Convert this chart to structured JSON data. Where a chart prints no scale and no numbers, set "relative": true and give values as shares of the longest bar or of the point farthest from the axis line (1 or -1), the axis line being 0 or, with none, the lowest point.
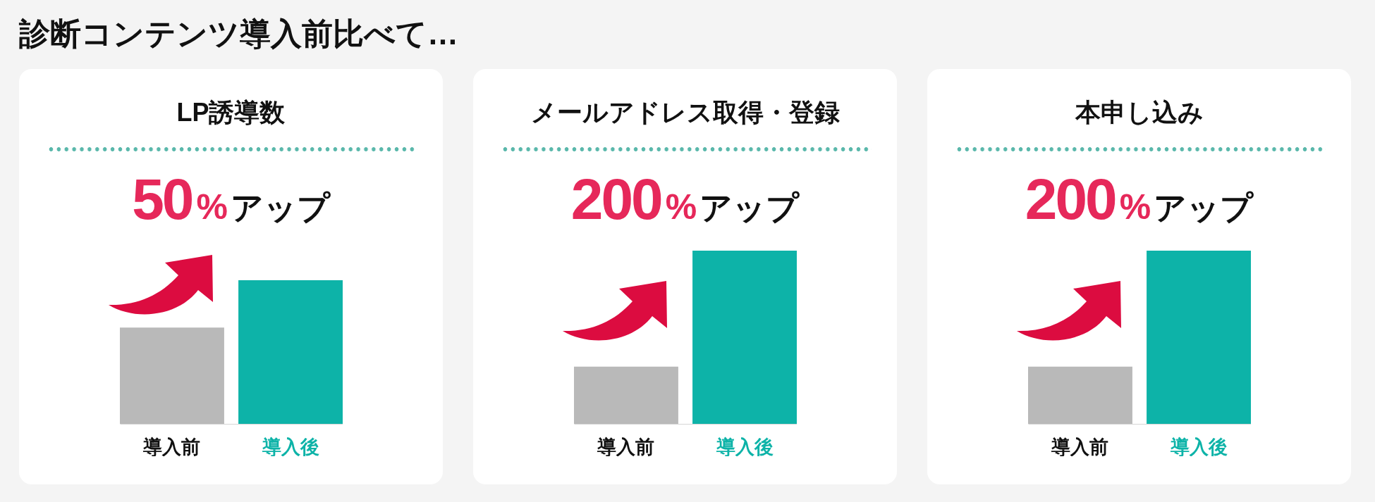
{
  "chart_data": [
    {
      "type": "other",
      "title": "診断コンテンツ導入前比べて…"
    },
    {
      "type": "bar",
      "title": "LP誘導数",
      "subtitle": "50%アップ",
      "categories": [
        "導入前",
        "導入後"
      ],
      "values": [
        0.67,
        1
      ],
      "colors": [
        "#b9b9b9",
        "#0db3a8"
      ],
      "relative": true
    },
    {
      "type": "bar",
      "title": "メールアドレス取得・登録",
      "subtitle": "200%アップ",
      "categories": [
        "導入前",
        "導入後"
      ],
      "values": [
        0.33,
        1
      ],
      "colors": [
        "#b9b9b9",
        "#0db3a8"
      ],
      "relative": true
    },
    {
      "type": "bar",
      "title": "本申し込み",
      "subtitle": "200%アップ",
      "categories": [
        "導入前",
        "導入後"
      ],
      "values": [
        0.33,
        1
      ],
      "colors": [
        "#b9b9b9",
        "#0db3a8"
      ],
      "relative": true
    }
  ]
}
